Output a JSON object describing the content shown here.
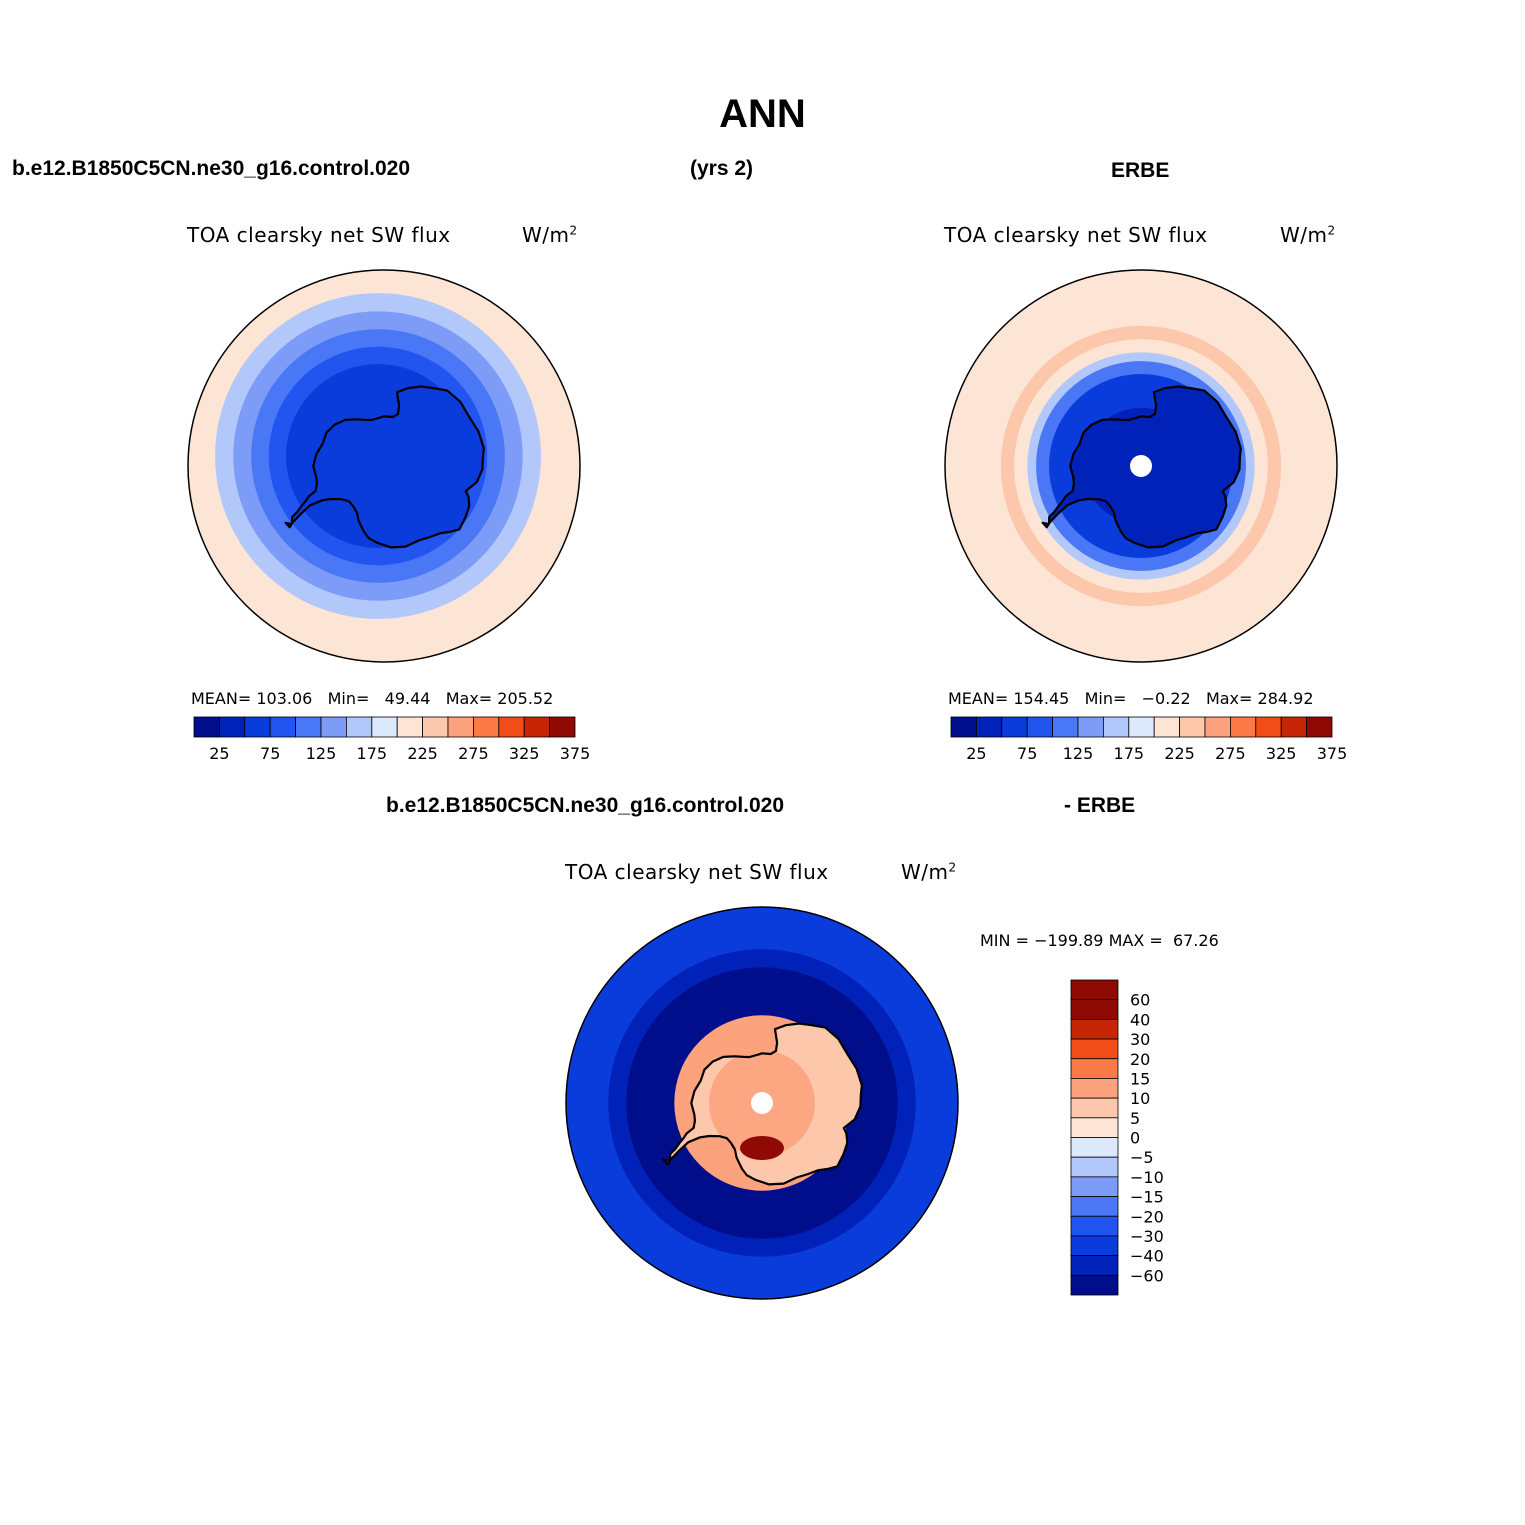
{
  "header": {
    "title": "ANN",
    "left_label": "b.e12.B1850C5CN.ne30_g16.control.020",
    "center_label": "(yrs 2)",
    "right_label": "ERBE",
    "diff_left_label": "b.e12.B1850C5CN.ne30_g16.control.020",
    "diff_right_label": "- ERBE"
  },
  "colors": {
    "abs_scale": [
      "#000e8c",
      "#0022b8",
      "#0a3cdb",
      "#2255f0",
      "#4a77f5",
      "#7c9cf7",
      "#b2c7fa",
      "#dce8fb",
      "#fde5d5",
      "#fdc7ab",
      "#fca27d",
      "#fb7a47",
      "#f04d19",
      "#c72606",
      "#8f0a04"
    ],
    "diff_scale": [
      "#000e8c",
      "#0022b8",
      "#0a3cdb",
      "#2255f0",
      "#4a77f5",
      "#7c9cf7",
      "#b2c7fa",
      "#dce8fb",
      "#fde5d5",
      "#fdc7ab",
      "#fca27d",
      "#fb7a47",
      "#f04d19",
      "#c72606",
      "#8f0a04"
    ]
  },
  "chart_data": [
    {
      "type": "heatmap",
      "projection": "south-polar-stereographic",
      "title": "TOA clearsky net SW flux",
      "units_prefix": "W/m",
      "units_exp": "2",
      "mean_label": "MEAN=",
      "mean": "103.06",
      "min_label": "Min=",
      "min": "49.44",
      "max_label": "Max=",
      "max": "205.52",
      "colorbar_ticks": [
        "25",
        "75",
        "125",
        "175",
        "225",
        "275",
        "325",
        "375"
      ],
      "rings": [
        {
          "outer_lat": -50,
          "value": 200
        },
        {
          "outer_lat": -52,
          "value": 170
        },
        {
          "outer_lat": -56,
          "value": 145
        },
        {
          "outer_lat": -60,
          "value": 120
        },
        {
          "outer_lat": -64,
          "value": 95
        },
        {
          "outer_lat": -68,
          "value": 70
        }
      ]
    },
    {
      "type": "heatmap",
      "projection": "south-polar-stereographic",
      "title": "TOA clearsky net SW flux",
      "units_prefix": "W/m",
      "units_exp": "2",
      "mean_label": "MEAN=",
      "mean": "154.45",
      "min_label": "Min=",
      "min": "−0.22",
      "max_label": "Max=",
      "max": "284.92",
      "colorbar_ticks": [
        "25",
        "75",
        "125",
        "175",
        "225",
        "275",
        "325",
        "375"
      ],
      "rings": [
        {
          "outer_lat": -50,
          "value": 215
        },
        {
          "outer_lat": -57,
          "value": 235
        },
        {
          "outer_lat": -60,
          "value": 215
        },
        {
          "outer_lat": -63,
          "value": 165
        },
        {
          "outer_lat": -65,
          "value": 110
        },
        {
          "outer_lat": -68,
          "value": 60
        },
        {
          "outer_lat": -76,
          "value": 30
        }
      ]
    },
    {
      "type": "heatmap",
      "projection": "south-polar-stereographic",
      "title": "TOA clearsky net SW flux",
      "units_prefix": "W/m",
      "units_exp": "2",
      "min_label": "MIN =",
      "min": "−199.89",
      "max_label": "MAX =",
      "max": "67.26",
      "colorbar_ticks": [
        "60",
        "40",
        "30",
        "20",
        "15",
        "10",
        "5",
        "0",
        "−5",
        "−10",
        "−15",
        "−20",
        "−30",
        "−40",
        "−60"
      ],
      "rings": [
        {
          "outer_lat": -50,
          "value": -35
        },
        {
          "outer_lat": -54,
          "value": -50
        },
        {
          "outer_lat": -58,
          "value": -80
        },
        {
          "outer_lat": -69,
          "value": 12
        },
        {
          "outer_lat": -78,
          "value": 8
        }
      ]
    }
  ]
}
